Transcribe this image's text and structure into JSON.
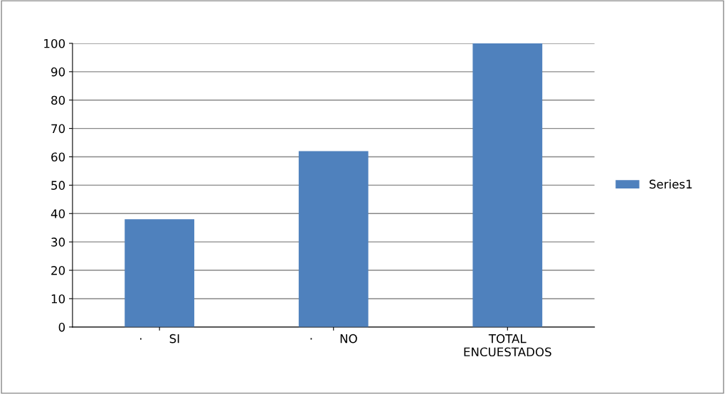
{
  "chart_data": {
    "type": "bar",
    "categories": [
      "·       SI",
      "·       NO",
      "TOTAL\nENCUESTADOS"
    ],
    "series": [
      {
        "name": "Series1",
        "color": "#4f81bd",
        "values": [
          38,
          62,
          100
        ]
      }
    ],
    "ylim": [
      0,
      100
    ],
    "yticks": [
      0,
      10,
      20,
      30,
      40,
      50,
      60,
      70,
      80,
      90,
      100
    ],
    "grid": "y",
    "legend": "right"
  }
}
